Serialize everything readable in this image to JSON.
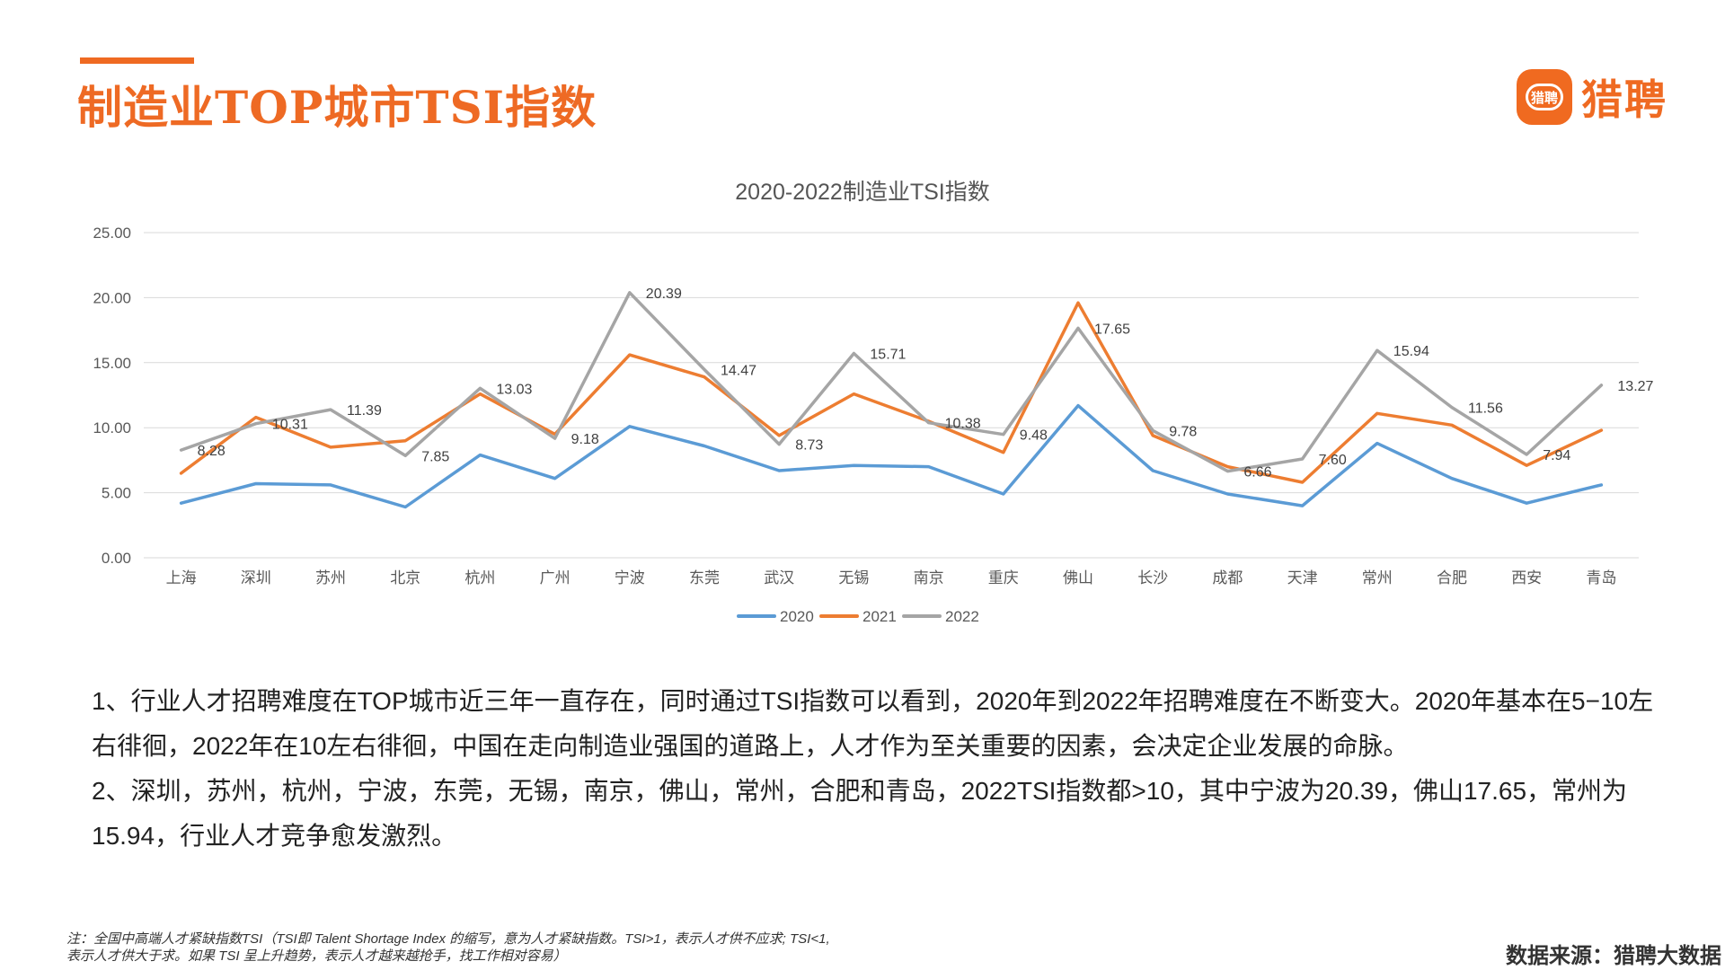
{
  "header": {
    "title": "制造业TOP城市TSI指数",
    "logo_icon_text": "猎聘",
    "logo_text": "猎聘",
    "accent_color": "#ee6a24"
  },
  "chart_data": {
    "type": "line",
    "title": "2020-2022制造业TSI指数",
    "xlabel": "",
    "ylabel": "",
    "ylim": [
      0,
      25
    ],
    "yticks": [
      "0.00",
      "5.00",
      "10.00",
      "15.00",
      "20.00",
      "25.00"
    ],
    "grid": true,
    "legend_position": "bottom",
    "categories": [
      "上海",
      "深圳",
      "苏州",
      "北京",
      "杭州",
      "广州",
      "宁波",
      "东莞",
      "武汉",
      "无锡",
      "南京",
      "重庆",
      "佛山",
      "长沙",
      "成都",
      "天津",
      "常州",
      "合肥",
      "西安",
      "青岛"
    ],
    "series": [
      {
        "name": "2020",
        "color": "#5b9bd5",
        "show_labels": false,
        "values": [
          4.2,
          5.7,
          5.6,
          3.9,
          7.9,
          6.1,
          10.1,
          8.6,
          6.7,
          7.1,
          7.0,
          4.9,
          11.7,
          6.7,
          4.9,
          4.0,
          8.8,
          6.1,
          4.2,
          5.6
        ]
      },
      {
        "name": "2021",
        "color": "#ed7d31",
        "show_labels": false,
        "values": [
          6.5,
          10.8,
          8.5,
          9.0,
          12.6,
          9.5,
          15.6,
          13.9,
          9.4,
          12.6,
          10.5,
          8.1,
          19.6,
          9.4,
          7.0,
          5.8,
          11.1,
          10.2,
          7.1,
          9.8
        ]
      },
      {
        "name": "2022",
        "color": "#a5a5a5",
        "show_labels": true,
        "values": [
          8.28,
          10.31,
          11.39,
          7.85,
          13.03,
          9.18,
          20.39,
          14.47,
          8.73,
          15.71,
          10.38,
          9.48,
          17.65,
          9.78,
          6.66,
          7.6,
          15.94,
          11.56,
          7.94,
          13.27
        ],
        "labels": [
          "8.28",
          "10.31",
          "11.39",
          "7.85",
          "13.03",
          "9.18",
          "20.39",
          "14.47",
          "8.73",
          "15.71",
          "10.38",
          "9.48",
          "17.65",
          "9.78",
          "6.66",
          "7.60",
          "15.94",
          "11.56",
          "7.94",
          "13.27"
        ]
      }
    ]
  },
  "notes": {
    "p1": "1、行业人才招聘难度在TOP城市近三年一直存在，同时通过TSI指数可以看到，2020年到2022年招聘难度在不断变大。2020年基本在5−10左右徘徊，2022年在10左右徘徊，中国在走向制造业强国的道路上，人才作为至关重要的因素，会决定企业发展的命脉。",
    "p2": "2、深圳，苏州，杭州，宁波，东莞，无锡，南京，佛山，常州，合肥和青岛，2022TSI指数都>10，其中宁波为20.39，佛山17.65，常州为15.94，行业人才竞争愈发激烈。"
  },
  "footnote": {
    "line1": "注：全国中高端人才紧缺指数TSI（TSI即 Talent Shortage Index 的缩写，意为人才紧缺指数。TSI>1，表示人才供不应求; TSI<1,",
    "line2": "表示人才供大于求。如果 TSI 呈上升趋势，表示人才越来越抢手，找工作相对容易）"
  },
  "source": "数据来源：猎聘大数据"
}
